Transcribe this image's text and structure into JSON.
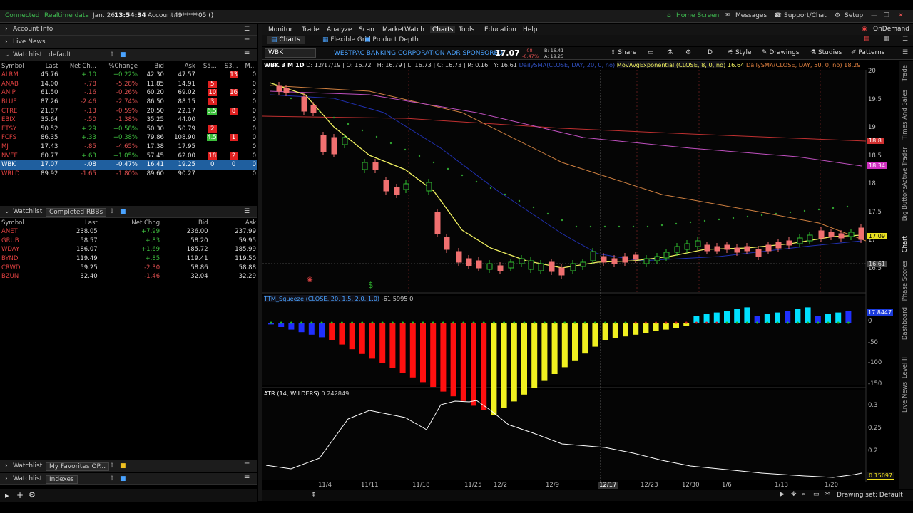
{
  "status_bar": {
    "connected": "Connected",
    "realtime": "Realtime data",
    "date": "Jan. 26",
    "time": "13:54:34",
    "account_label": "Account:",
    "account": "49*****05 ()",
    "home": "Home Screen",
    "messages": "Messages",
    "support": "Support/Chat",
    "setup": "Setup"
  },
  "left": {
    "account_info": "Account Info",
    "live_news": "Live News",
    "watchlist_label": "Watchlist",
    "watchlist_name": "default",
    "columns": [
      "Symbol",
      "Last",
      "Net Ch...",
      "%Change",
      "Bid",
      "Ask",
      "S5...",
      "S3...",
      "M..."
    ],
    "rows": [
      {
        "sym": "ALRM",
        "last": "45.76",
        "chg": "+.10",
        "pct": "+0.22%",
        "bid": "42.30",
        "ask": "47.57",
        "s5": "",
        "s3": "13",
        "m": "0"
      },
      {
        "sym": "ANAB",
        "last": "14.00",
        "chg": "-.78",
        "pct": "-5.28%",
        "bid": "11.85",
        "ask": "14.91",
        "s5": "5",
        "s3": "",
        "m": "0"
      },
      {
        "sym": "ANIP",
        "last": "61.50",
        "chg": "-.16",
        "pct": "-0.26%",
        "bid": "60.20",
        "ask": "69.02",
        "s5": "10",
        "s3": "16",
        "m": "0"
      },
      {
        "sym": "BLUE",
        "last": "87.26",
        "chg": "-2.46",
        "pct": "-2.74%",
        "bid": "86.50",
        "ask": "88.15",
        "s5": "3",
        "s3": "",
        "m": "0"
      },
      {
        "sym": "CTRE",
        "last": "21.87",
        "chg": "-.13",
        "pct": "-0.59%",
        "bid": "20.50",
        "ask": "22.17",
        "s5": "6.5",
        "s3": "8",
        "m": "0"
      },
      {
        "sym": "EBIX",
        "last": "35.64",
        "chg": "-.50",
        "pct": "-1.38%",
        "bid": "35.25",
        "ask": "44.00",
        "s5": "",
        "s3": "",
        "m": "0"
      },
      {
        "sym": "ETSY",
        "last": "50.52",
        "chg": "+.29",
        "pct": "+0.58%",
        "bid": "50.30",
        "ask": "50.79",
        "s5": "2",
        "s3": "",
        "m": "0"
      },
      {
        "sym": "FCFS",
        "last": "86.35",
        "chg": "+.33",
        "pct": "+0.38%",
        "bid": "79.86",
        "ask": "108.90",
        "s5": "4.5",
        "s3": "1",
        "m": "0"
      },
      {
        "sym": "MJ",
        "last": "17.43",
        "chg": "-.85",
        "pct": "-4.65%",
        "bid": "17.38",
        "ask": "17.95",
        "s5": "",
        "s3": "",
        "m": "0"
      },
      {
        "sym": "NVEE",
        "last": "60.77",
        "chg": "+.63",
        "pct": "+1.05%",
        "bid": "57.45",
        "ask": "62.00",
        "s5": "18",
        "s3": "2",
        "m": "0"
      },
      {
        "sym": "WBK",
        "last": "17.07",
        "chg": "-.08",
        "pct": "-0.47%",
        "bid": "16.41",
        "ask": "19.25",
        "s5": "0",
        "s3": "0",
        "m": "0"
      },
      {
        "sym": "WRLD",
        "last": "89.92",
        "chg": "-1.65",
        "pct": "-1.80%",
        "bid": "89.60",
        "ask": "90.27",
        "s5": "",
        "s3": "",
        "m": "0"
      }
    ],
    "watchlist2_name": "Completed RBBs",
    "columns2": [
      "Symbol",
      "Last",
      "Net Chng",
      "Bid",
      "Ask"
    ],
    "rows2": [
      {
        "sym": "ANET",
        "last": "238.05",
        "chg": "+7.99",
        "bid": "236.00",
        "ask": "237.99"
      },
      {
        "sym": "GRUB",
        "last": "58.57",
        "chg": "+.83",
        "bid": "58.20",
        "ask": "59.95"
      },
      {
        "sym": "WDAY",
        "last": "186.07",
        "chg": "+1.69",
        "bid": "185.72",
        "ask": "185.99"
      },
      {
        "sym": "BYND",
        "last": "119.49",
        "chg": "+.85",
        "bid": "119.41",
        "ask": "119.50"
      },
      {
        "sym": "CRWD",
        "last": "59.25",
        "chg": "-2.30",
        "bid": "58.86",
        "ask": "58.88"
      },
      {
        "sym": "BZUN",
        "last": "32.40",
        "chg": "-1.46",
        "bid": "32.04",
        "ask": "32.29"
      }
    ],
    "watchlist3_name": "My Favorites OP...",
    "watchlist4_name": "Indexes"
  },
  "menu": [
    "Monitor",
    "Trade",
    "Analyze",
    "Scan",
    "MarketWatch",
    "Charts",
    "Tools",
    "Education",
    "Help"
  ],
  "ondemand": "OnDemand",
  "subtabs": [
    "Charts",
    "Flexible Grid",
    "Product Depth"
  ],
  "symbol_bar": {
    "symbol": "WBK",
    "description": "WESTPAC BANKING CORPORATION ADR SPONSORED",
    "price": "17.07",
    "change": "-.08",
    "pct": "-0.47%",
    "bid": "B: 16.41",
    "ask": "A: 19.25",
    "share": "Share",
    "period": "D",
    "style": "Style",
    "drawings": "Drawings",
    "studies": "Studies",
    "patterns": "Patterns"
  },
  "chart_header": {
    "title": "WBK 3 M 1D",
    "ohlc": "D: 12/17/19 | O: 16.72 | H: 16.79 | L: 16.73 | C: 16.73 | R: 0.16 | Y: 16.61",
    "sma20": "DailySMA(CLOSE, DAY, 20, 0, no)",
    "ema": "MovAvgExponential (CLOSE, 8, 0, no)",
    "ema_val": "16.64",
    "sma50": "DailySMA(CLOSE, DAY, 50, 0, no)",
    "sma50_val": "18.29"
  },
  "price_axis": [
    "20",
    "19.5",
    "19",
    "18.5",
    "18",
    "17.5",
    "17",
    "16.5"
  ],
  "price_badges": {
    "red": "18.8",
    "pink": "18.34",
    "yellow": "17.09",
    "gray": "16.61"
  },
  "ttm": {
    "label": "TTM_Squeeze (CLOSE, 20, 1.5, 2.0, 1.0)",
    "value": "-61.5995",
    "zero": "0",
    "axis": [
      "0",
      "-50",
      "-100",
      "-150"
    ],
    "badge": "17.8447"
  },
  "atr": {
    "label": "ATR (14, WILDERS)",
    "value": "0.242849",
    "axis": [
      "0.3",
      "0.25",
      "0.2"
    ],
    "badge": "0.15097"
  },
  "date_axis": [
    "11/4",
    "11/11",
    "11/18",
    "11/25",
    "12/2",
    "12/9",
    "12/17",
    "12/23",
    "12/30",
    "1/6",
    "1/13",
    "1/20"
  ],
  "drawing_set": "Drawing set: Default",
  "right_tabs": [
    "Trade",
    "Times And Sales",
    "Active Trader",
    "Big Buttons",
    "Chart",
    "Phase Scores",
    "Dashboard",
    "Level II",
    "Live News"
  ],
  "chart_data": [
    {
      "type": "line",
      "title": "WBK 3 M 1D",
      "series": [
        {
          "name": "MovAvgExponential",
          "values": [
            19.4,
            19.2,
            18.9,
            18.7,
            18.4,
            18.1,
            17.8,
            17.5,
            17.1,
            16.9,
            16.7,
            16.6,
            16.55,
            16.6,
            16.64,
            16.6,
            16.68,
            16.72,
            16.8,
            16.85,
            16.9,
            16.98,
            17.05,
            17.09
          ]
        },
        {
          "name": "DailySMA",
          "values": [
            19.5,
            19.45,
            19.4,
            19.35,
            19.3,
            19.25,
            19.15,
            19.05,
            18.95,
            18.85,
            18.78,
            18.7,
            18.63,
            18.57,
            18.52,
            18.47,
            18.42,
            18.38,
            18.34
          ]
        }
      ],
      "ylim": [
        16.3,
        20.1
      ]
    },
    {
      "type": "bar",
      "title": "TTM_Squeeze",
      "ylim": [
        -150,
        20
      ]
    },
    {
      "type": "line",
      "title": "ATR (14, WILDERS)",
      "ylim": [
        0.14,
        0.33
      ]
    }
  ]
}
